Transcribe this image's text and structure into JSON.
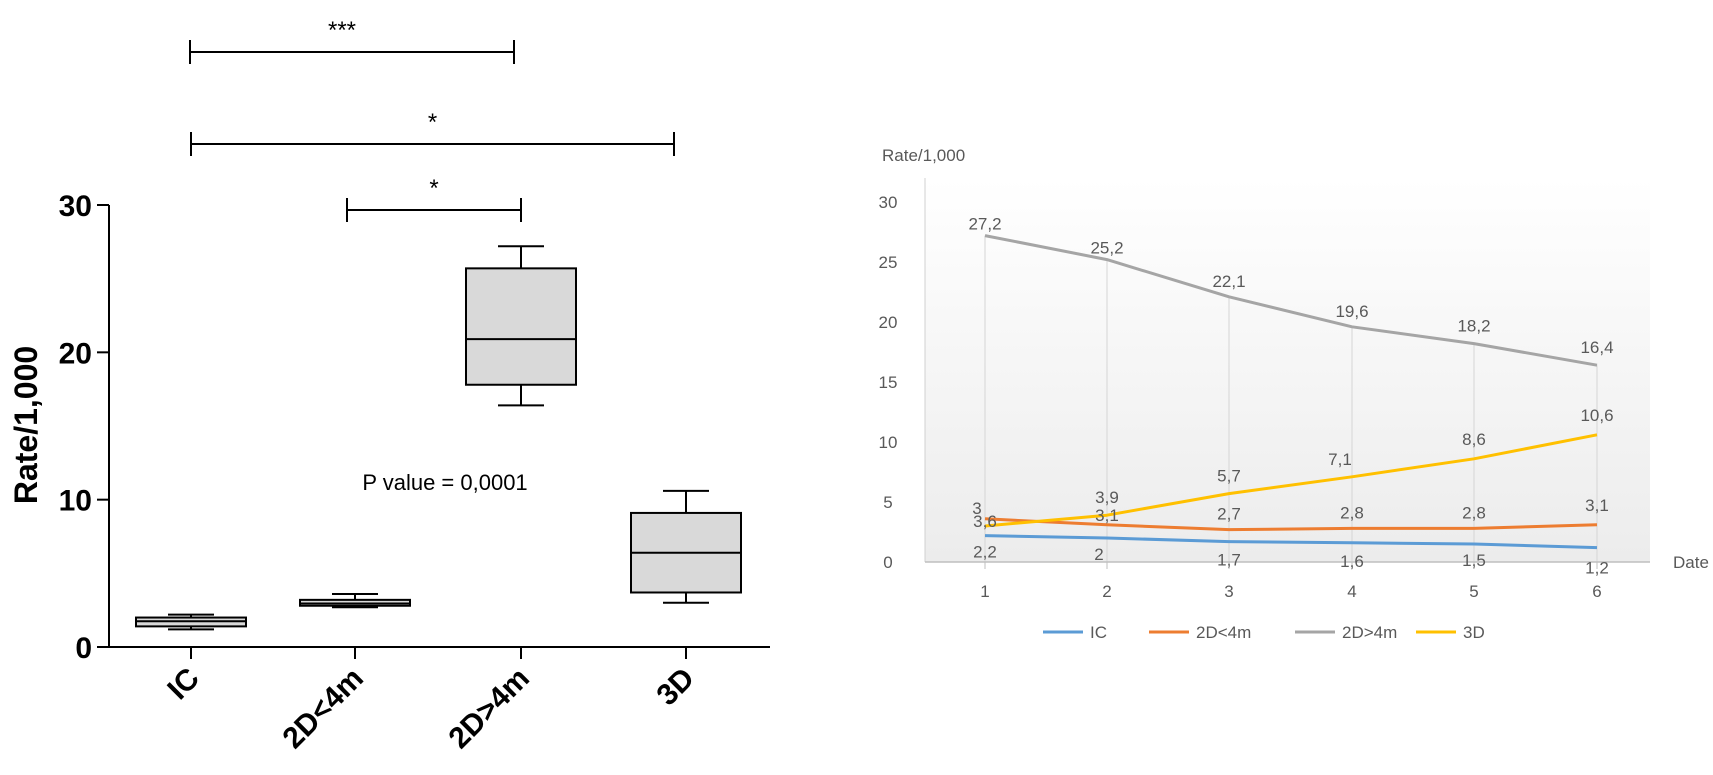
{
  "chart_data": [
    {
      "type": "box",
      "ylabel": "Rate/1,000",
      "ylim": [
        0,
        30
      ],
      "yticks": [
        "0",
        "10",
        "20",
        "30"
      ],
      "categories": [
        "IC",
        "2D<4m",
        "2D>4m",
        "3D"
      ],
      "boxes": [
        {
          "category": "IC",
          "min": 1.2,
          "q1": 1.4,
          "median": 1.75,
          "q3": 2.0,
          "max": 2.2
        },
        {
          "category": "2D<4m",
          "min": 2.7,
          "q1": 2.8,
          "median": 2.95,
          "q3": 3.2,
          "max": 3.6
        },
        {
          "category": "2D>4m",
          "min": 16.4,
          "q1": 17.8,
          "median": 20.9,
          "q3": 25.7,
          "max": 27.2
        },
        {
          "category": "3D",
          "min": 3.0,
          "q1": 3.7,
          "median": 6.4,
          "q3": 9.1,
          "max": 10.6
        }
      ],
      "significance": [
        {
          "from": 0,
          "to": 2,
          "label": "***"
        },
        {
          "from": 0,
          "to": 3,
          "label": "*"
        },
        {
          "from": 1,
          "to": 2,
          "label": "*"
        }
      ],
      "annotation": "P value = 0,0001",
      "box_color": "#d9d9d9"
    },
    {
      "type": "line",
      "ylabel": "Rate/1,000",
      "xlabel": "Date",
      "ylim": [
        0,
        30
      ],
      "yticks": [
        "0",
        "5",
        "10",
        "15",
        "20",
        "25",
        "30"
      ],
      "x": [
        "1",
        "2",
        "3",
        "4",
        "5",
        "6"
      ],
      "series": [
        {
          "name": "IC",
          "color": "#5b9bd5",
          "values": [
            2.2,
            2.0,
            1.7,
            1.6,
            1.5,
            1.2
          ],
          "labels": [
            "2,2",
            "2",
            "1,7",
            "1,6",
            "1,5",
            "1,2"
          ]
        },
        {
          "name": "2D<4m",
          "color": "#ed7d31",
          "values": [
            3.6,
            3.1,
            2.7,
            2.8,
            2.8,
            3.1
          ],
          "labels": [
            "3,6",
            "3,1",
            "2,7",
            "2,8",
            "2,8",
            "3,1"
          ]
        },
        {
          "name": "2D>4m",
          "color": "#a5a5a5",
          "values": [
            27.2,
            25.2,
            22.1,
            19.6,
            18.2,
            16.4
          ],
          "labels": [
            "27,2",
            "25,2",
            "22,1",
            "19,6",
            "18,2",
            "16,4"
          ]
        },
        {
          "name": "3D",
          "color": "#ffc000",
          "values": [
            3.0,
            3.9,
            5.7,
            7.1,
            8.6,
            10.6
          ],
          "labels": [
            "3",
            "3,9",
            "5,7",
            "7,1",
            "8,6",
            "10,6"
          ]
        }
      ],
      "legend": "bottom"
    }
  ]
}
